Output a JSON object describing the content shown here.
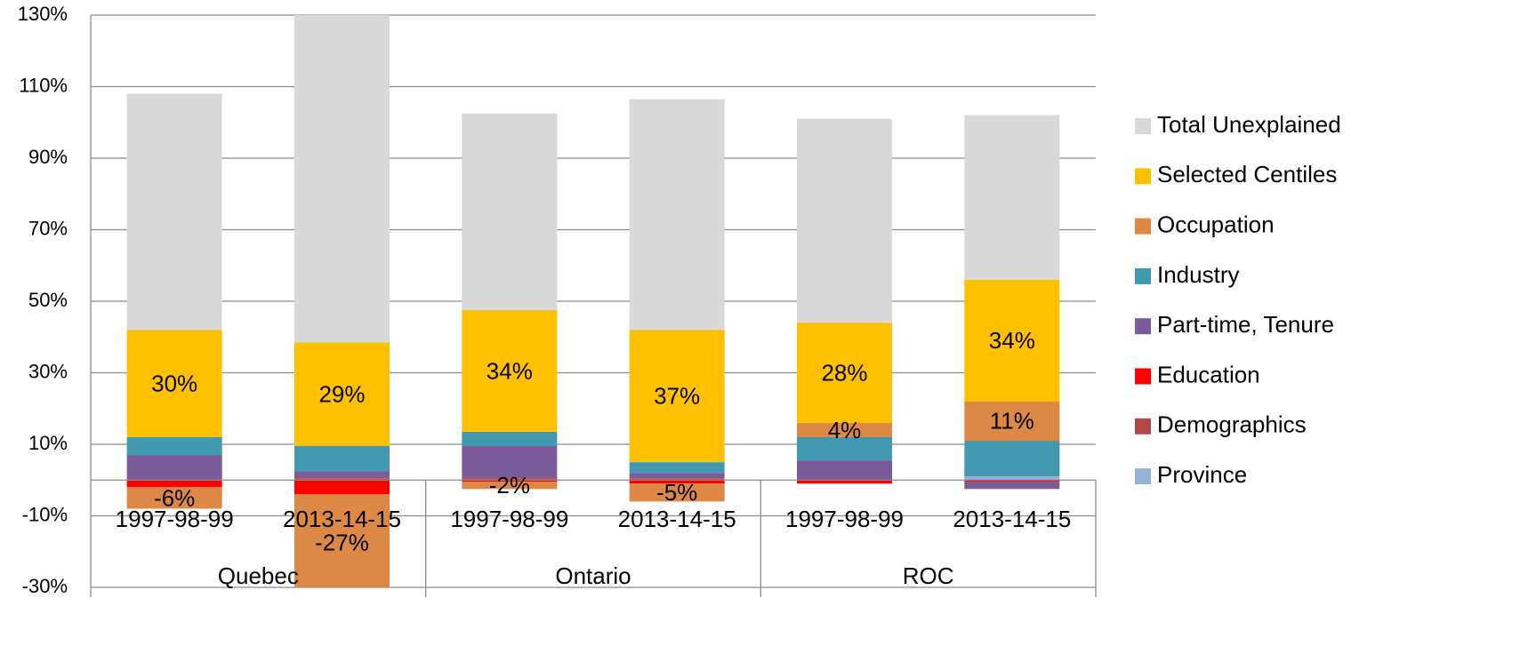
{
  "chart_data": {
    "type": "stacked-bar",
    "categories": [
      "1997-98-99",
      "2013-14-15",
      "1997-98-99",
      "2013-14-15",
      "1997-98-99",
      "2013-14-15"
    ],
    "groups": [
      "Quebec",
      "Ontario",
      "ROC"
    ],
    "ylim": [
      -30,
      130
    ],
    "yticks": [
      {
        "value": -30,
        "label": "-30%"
      },
      {
        "value": -10,
        "label": "-10%"
      },
      {
        "value": 10,
        "label": "10%"
      },
      {
        "value": 30,
        "label": "30%"
      },
      {
        "value": 50,
        "label": "50%"
      },
      {
        "value": 70,
        "label": "70%"
      },
      {
        "value": 90,
        "label": "90%"
      },
      {
        "value": 110,
        "label": "110%"
      },
      {
        "value": 130,
        "label": "130%"
      }
    ],
    "grid": true,
    "legend": "right",
    "series": [
      {
        "name": "Province",
        "color": "#95b3d7",
        "values": [
          0,
          0,
          0,
          0,
          0,
          1
        ]
      },
      {
        "name": "Demographics",
        "color": "#b04a4a",
        "values": [
          0,
          0.5,
          0.5,
          0.5,
          0,
          0
        ]
      },
      {
        "name": "Education",
        "color": "#ff0000",
        "values": [
          -2,
          -4,
          -0.5,
          -1,
          -1,
          -0.5
        ]
      },
      {
        "name": "Part-time, Tenure",
        "color": "#7a5c9a",
        "values": [
          7,
          2,
          9,
          1.5,
          5.5,
          -2
        ]
      },
      {
        "name": "Industry",
        "color": "#4198af",
        "values": [
          5,
          7,
          4,
          3,
          6.5,
          10
        ]
      },
      {
        "name": "Occupation",
        "color": "#dd8844",
        "values": [
          -6,
          -27,
          -2,
          -5,
          4,
          11
        ],
        "value_labels": [
          "-6%",
          "-27%",
          "-2%",
          "-5%",
          "4%",
          "11%"
        ]
      },
      {
        "name": "Selected Centiles",
        "color": "#ffc000",
        "values": [
          30,
          29,
          34,
          37,
          28,
          34
        ],
        "value_labels": [
          "30%",
          "29%",
          "34%",
          "37%",
          "28%",
          "34%"
        ]
      },
      {
        "name": "Total Unexplained",
        "color": "#d9d9d9",
        "values": [
          66,
          91.5,
          55,
          64.5,
          57,
          46
        ]
      }
    ]
  }
}
